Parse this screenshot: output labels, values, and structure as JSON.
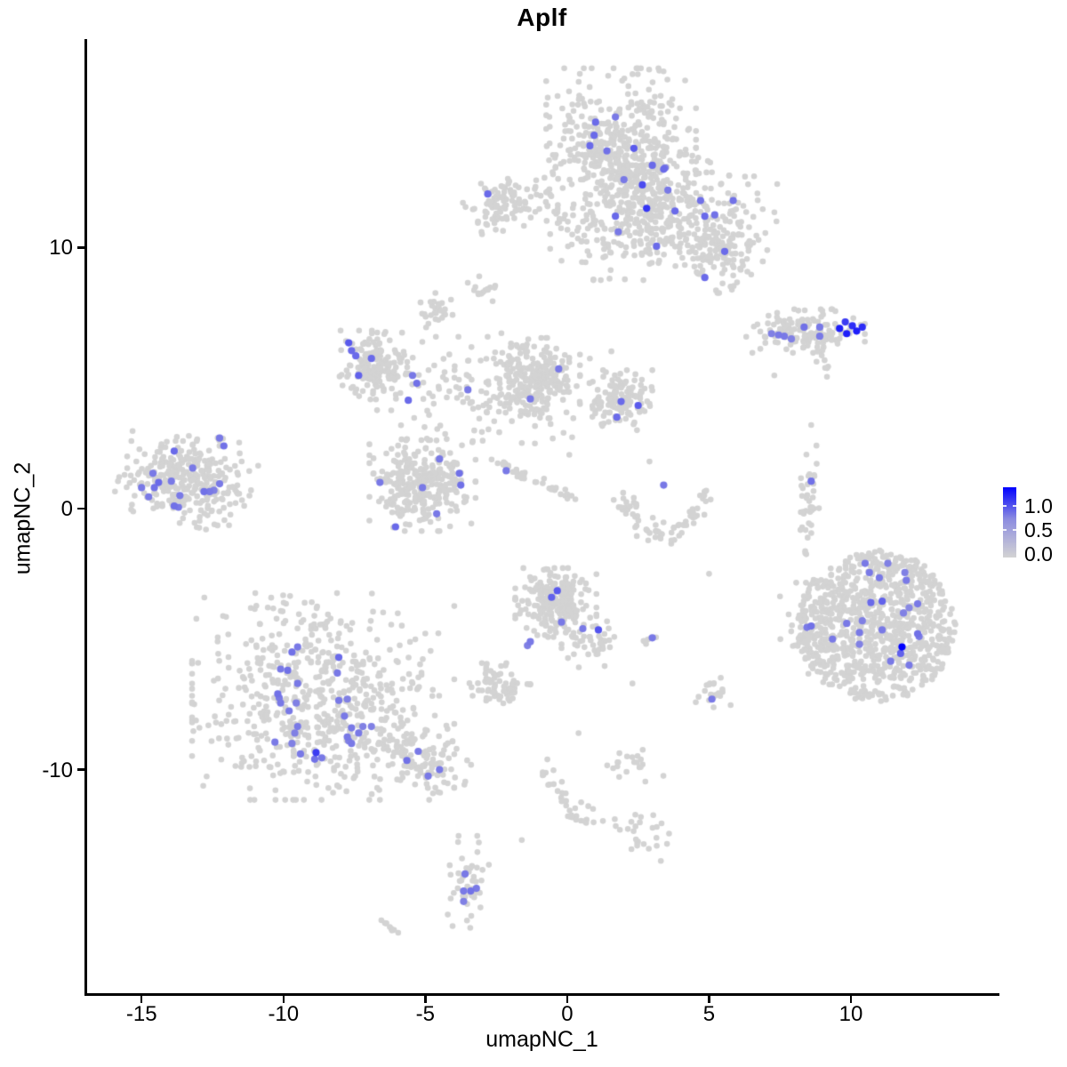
{
  "title": "Aplf",
  "axes": {
    "x": {
      "label": "umapNC_1",
      "ticks": [
        -15,
        -10,
        -5,
        0,
        5,
        10
      ],
      "range": [
        -16.95,
        15.17
      ]
    },
    "y": {
      "label": "umapNC_2",
      "ticks": [
        10,
        0,
        -10
      ],
      "range": [
        -18.6,
        17.95
      ]
    }
  },
  "legend": {
    "ticks": [
      "1.0",
      "0.5",
      "0.0"
    ],
    "vmin": -0.07,
    "vmax": 1.39,
    "low_color": "#d3d3d3",
    "high_color": "#0000ff"
  },
  "chart_data": {
    "type": "scatter",
    "title": "Aplf",
    "xlabel": "umapNC_1",
    "ylabel": "umapNC_2",
    "xlim": [
      -16.95,
      15.17
    ],
    "ylim": [
      -18.6,
      17.95
    ],
    "grid": false,
    "legend_position": "right",
    "point_color_low": "#d3d3d3",
    "point_color_high": "#0000ff",
    "value_max": 1.4,
    "clusters": [
      {
        "x": 1.9,
        "y": 13.9,
        "sx": 1.2,
        "sy": 1.35,
        "n": 430
      },
      {
        "x": 2.3,
        "y": 11.9,
        "sx": 0.75,
        "sy": 1.0,
        "n": 120
      },
      {
        "x": 4.4,
        "y": 11.3,
        "sx": 1.35,
        "sy": 0.95,
        "n": 250,
        "rot": -20
      },
      {
        "x": 5.5,
        "y": 9.8,
        "sx": 0.7,
        "sy": 0.7,
        "n": 85
      },
      {
        "x": 1.6,
        "y": 10.4,
        "sx": 1.0,
        "sy": 0.75,
        "n": 80
      },
      {
        "x": -2.0,
        "y": 11.65,
        "sx": 0.75,
        "sy": 0.45,
        "n": 110,
        "rot": 8
      },
      {
        "x": 0.3,
        "y": 11.3,
        "sx": 0.45,
        "sy": 0.3,
        "n": 14
      },
      {
        "x": -4.7,
        "y": 7.6,
        "sx": 0.3,
        "sy": 0.3,
        "n": 28
      },
      {
        "x": -3.0,
        "y": 8.4,
        "sx": 0.28,
        "sy": 0.22,
        "n": 14
      },
      {
        "x": 8.4,
        "y": 6.8,
        "sx": 0.95,
        "sy": 0.38,
        "n": 140
      },
      {
        "x": -6.7,
        "y": 5.5,
        "sx": 0.6,
        "sy": 0.6,
        "n": 150
      },
      {
        "x": -4.5,
        "y": 4.6,
        "sx": 1.0,
        "sy": 0.9,
        "n": 60
      },
      {
        "x": -1.2,
        "y": 5.0,
        "sx": 0.75,
        "sy": 0.7,
        "n": 240
      },
      {
        "x": -1.5,
        "y": 4.3,
        "sx": 1.8,
        "sy": 1.1,
        "n": 80
      },
      {
        "x": 1.9,
        "y": 4.2,
        "sx": 0.5,
        "sy": 0.5,
        "n": 130
      },
      {
        "x": -5.1,
        "y": 0.9,
        "sx": 0.85,
        "sy": 0.8,
        "n": 300
      },
      {
        "x": -13.4,
        "y": 1.2,
        "sx": 1.05,
        "sy": 0.8,
        "n": 310,
        "rot": -15
      },
      {
        "x": 8.5,
        "y": 0.3,
        "sx": 0.18,
        "sy": 1.0,
        "n": 38
      },
      {
        "x": 10.9,
        "y": -4.5,
        "sx": 2.8,
        "sy": 2.9,
        "n": 900,
        "shape": "disc"
      },
      {
        "x": 8.6,
        "y": -4.6,
        "sx": 0.5,
        "sy": 0.8,
        "n": 45
      },
      {
        "x": -0.4,
        "y": -3.6,
        "sx": 0.65,
        "sy": 0.6,
        "n": 230
      },
      {
        "x": 0.9,
        "y": -5.2,
        "sx": 0.5,
        "sy": 0.4,
        "n": 40
      },
      {
        "x": -2.4,
        "y": -6.8,
        "sx": 0.5,
        "sy": 0.4,
        "n": 65
      },
      {
        "x": -8.6,
        "y": -7.2,
        "sx": 2.1,
        "sy": 1.8,
        "n": 620
      },
      {
        "x": -5.4,
        "y": -9.5,
        "sx": 1.1,
        "sy": 0.5,
        "n": 120,
        "rot": -28
      },
      {
        "x": 5.1,
        "y": -7.1,
        "sx": 0.3,
        "sy": 0.3,
        "n": 20
      },
      {
        "x": 3.0,
        "y": -5.0,
        "sx": 0.18,
        "sy": 0.18,
        "n": 6
      },
      {
        "x": 2.4,
        "y": -9.8,
        "sx": 0.45,
        "sy": 0.3,
        "n": 20
      },
      {
        "x": 2.6,
        "y": -12.4,
        "sx": 0.45,
        "sy": 0.4,
        "n": 24
      },
      {
        "x": 0.9,
        "y": -11.7,
        "sx": 0.4,
        "sy": 0.25,
        "n": 12
      },
      {
        "x": -3.5,
        "y": -14.3,
        "sx": 0.35,
        "sy": 0.8,
        "n": 46
      }
    ],
    "streaks": [
      {
        "x1": -2.5,
        "y1": 1.8,
        "x2": 0.25,
        "y2": 0.4,
        "n": 36,
        "jit": 0.1
      },
      {
        "x1": -0.8,
        "y1": -9.6,
        "x2": 0.2,
        "y2": -12.0,
        "n": 24,
        "jit": 0.15
      },
      {
        "x1": 8.75,
        "y1": 6.3,
        "x2": 9.35,
        "y2": 5.1,
        "n": 10,
        "jit": 0.1
      },
      {
        "x1": -6.5,
        "y1": -15.9,
        "x2": -6.0,
        "y2": -16.2,
        "n": 9,
        "jit": 0.06
      }
    ],
    "arcs": [
      {
        "cx": 3.4,
        "cy": 0.95,
        "rx": 1.45,
        "ry": 1.9,
        "a1": 190,
        "a2": 350,
        "jit": 0.18,
        "n": 72
      }
    ],
    "singles": [
      [
        -3.1,
        8.9
      ],
      [
        8.6,
        3.2
      ],
      [
        2.9,
        1.8
      ],
      [
        5.0,
        -2.5
      ],
      [
        2.3,
        -6.7
      ],
      [
        0.4,
        -8.6
      ],
      [
        7.3,
        5.1
      ],
      [
        -1.6,
        -12.7
      ],
      [
        3.3,
        -13.5
      ]
    ],
    "highlighted_points": [
      [
        1.0,
        14.8,
        0.7
      ],
      [
        1.7,
        15.0,
        0.6
      ],
      [
        0.95,
        14.3,
        0.7
      ],
      [
        0.8,
        13.9,
        0.7
      ],
      [
        1.4,
        13.7,
        0.65
      ],
      [
        2.35,
        13.8,
        0.8
      ],
      [
        3.0,
        13.15,
        0.7
      ],
      [
        3.45,
        13.05,
        0.6
      ],
      [
        2.65,
        12.4,
        0.9
      ],
      [
        3.55,
        12.2,
        0.6
      ],
      [
        2.8,
        11.5,
        1.05
      ],
      [
        3.8,
        11.4,
        0.7
      ],
      [
        1.7,
        11.2,
        0.7
      ],
      [
        1.8,
        10.6,
        0.6
      ],
      [
        4.7,
        11.8,
        0.65
      ],
      [
        5.85,
        11.8,
        0.65
      ],
      [
        4.85,
        11.2,
        0.7
      ],
      [
        5.2,
        11.25,
        0.65
      ],
      [
        3.15,
        10.05,
        0.7
      ],
      [
        5.55,
        9.85,
        0.7
      ],
      [
        4.85,
        8.85,
        0.7
      ],
      [
        3.4,
        13.0,
        0.7
      ],
      [
        2.0,
        12.6,
        0.6
      ],
      [
        -2.8,
        12.05,
        0.7
      ],
      [
        7.2,
        6.7,
        0.55
      ],
      [
        7.45,
        6.65,
        0.6
      ],
      [
        7.65,
        6.6,
        0.6
      ],
      [
        7.9,
        6.5,
        0.55
      ],
      [
        8.35,
        6.95,
        0.65
      ],
      [
        8.9,
        6.95,
        0.6
      ],
      [
        8.9,
        6.6,
        0.6
      ],
      [
        9.6,
        6.9,
        1.2
      ],
      [
        9.85,
        6.7,
        1.2
      ],
      [
        10.05,
        7.0,
        1.1
      ],
      [
        10.2,
        6.8,
        1.2
      ],
      [
        10.4,
        6.95,
        1.1
      ],
      [
        9.8,
        7.15,
        1.0
      ],
      [
        -7.7,
        6.35,
        0.8
      ],
      [
        -7.6,
        6.05,
        0.7
      ],
      [
        -7.45,
        5.85,
        0.7
      ],
      [
        -6.9,
        5.75,
        0.7
      ],
      [
        -7.35,
        5.1,
        0.75
      ],
      [
        -5.45,
        5.1,
        0.6
      ],
      [
        -5.3,
        4.8,
        0.65
      ],
      [
        -5.6,
        4.15,
        0.7
      ],
      [
        -3.5,
        4.55,
        0.6
      ],
      [
        -1.3,
        4.2,
        0.6
      ],
      [
        -0.3,
        5.35,
        0.6
      ],
      [
        -2.15,
        1.45,
        0.6
      ],
      [
        1.9,
        4.1,
        0.7
      ],
      [
        2.5,
        3.95,
        0.8
      ],
      [
        1.75,
        3.5,
        0.7
      ],
      [
        -6.6,
        1.0,
        0.6
      ],
      [
        -4.5,
        1.9,
        0.6
      ],
      [
        -3.8,
        1.35,
        0.65
      ],
      [
        -5.1,
        0.8,
        0.6
      ],
      [
        -3.75,
        0.9,
        0.65
      ],
      [
        -4.6,
        -0.2,
        0.6
      ],
      [
        -6.05,
        -0.7,
        0.7
      ],
      [
        -12.25,
        2.7,
        0.6
      ],
      [
        -12.1,
        2.4,
        0.65
      ],
      [
        -13.85,
        2.2,
        0.7
      ],
      [
        -13.2,
        1.55,
        0.6
      ],
      [
        -14.6,
        1.35,
        0.6
      ],
      [
        -14.4,
        1.0,
        0.7
      ],
      [
        -15.0,
        0.8,
        0.6
      ],
      [
        -14.55,
        0.8,
        0.65
      ],
      [
        -13.95,
        1.05,
        0.6
      ],
      [
        -13.65,
        0.5,
        0.6
      ],
      [
        -14.75,
        0.45,
        0.6
      ],
      [
        -12.8,
        0.65,
        0.65
      ],
      [
        -12.6,
        0.65,
        0.6
      ],
      [
        -12.45,
        0.7,
        0.55
      ],
      [
        -12.25,
        0.95,
        0.6
      ],
      [
        -13.85,
        0.1,
        0.65
      ],
      [
        -13.7,
        0.05,
        0.6
      ],
      [
        3.4,
        0.9,
        0.6
      ],
      [
        8.6,
        1.05,
        0.65
      ],
      [
        10.5,
        -2.1,
        0.6
      ],
      [
        11.3,
        -2.1,
        0.55
      ],
      [
        10.65,
        -2.45,
        0.6
      ],
      [
        11.0,
        -2.65,
        0.6
      ],
      [
        11.9,
        -2.45,
        0.55
      ],
      [
        11.95,
        -2.75,
        0.6
      ],
      [
        10.7,
        -3.6,
        0.7
      ],
      [
        11.1,
        -3.55,
        0.75
      ],
      [
        12.35,
        -3.65,
        0.6
      ],
      [
        11.85,
        -4.0,
        0.55
      ],
      [
        12.05,
        -3.8,
        0.5
      ],
      [
        9.85,
        -4.4,
        0.6
      ],
      [
        10.4,
        -4.3,
        0.55
      ],
      [
        8.6,
        -4.5,
        0.65
      ],
      [
        8.45,
        -4.55,
        0.6
      ],
      [
        10.3,
        -4.75,
        0.6
      ],
      [
        11.1,
        -4.65,
        0.6
      ],
      [
        12.35,
        -4.8,
        0.65
      ],
      [
        12.4,
        -4.9,
        0.6
      ],
      [
        9.35,
        -5.0,
        0.6
      ],
      [
        10.3,
        -5.2,
        0.55
      ],
      [
        11.8,
        -5.3,
        1.4
      ],
      [
        11.75,
        -5.55,
        0.75
      ],
      [
        11.4,
        -5.85,
        0.6
      ],
      [
        12.05,
        -6.0,
        0.6
      ],
      [
        -0.35,
        -3.15,
        0.8
      ],
      [
        -0.55,
        -3.4,
        0.75
      ],
      [
        -0.2,
        -4.35,
        0.6
      ],
      [
        0.55,
        -4.6,
        0.6
      ],
      [
        1.1,
        -4.65,
        0.85
      ],
      [
        -1.3,
        -5.1,
        0.6
      ],
      [
        -1.4,
        -5.25,
        0.55
      ],
      [
        3.0,
        -4.95,
        0.6
      ],
      [
        5.1,
        -7.3,
        0.6
      ],
      [
        -9.5,
        -5.3,
        0.6
      ],
      [
        -9.7,
        -5.5,
        0.65
      ],
      [
        -8.05,
        -5.7,
        0.7
      ],
      [
        -10.1,
        -6.15,
        0.6
      ],
      [
        -9.85,
        -6.2,
        0.65
      ],
      [
        -8.1,
        -6.3,
        0.6
      ],
      [
        -9.5,
        -6.7,
        0.6
      ],
      [
        -10.2,
        -7.1,
        0.65
      ],
      [
        -10.15,
        -7.25,
        0.6
      ],
      [
        -10.1,
        -7.45,
        0.6
      ],
      [
        -9.55,
        -7.45,
        0.55
      ],
      [
        -9.8,
        -7.75,
        0.6
      ],
      [
        -8.05,
        -7.35,
        0.6
      ],
      [
        -7.75,
        -7.3,
        0.55
      ],
      [
        -7.85,
        -7.95,
        0.6
      ],
      [
        -9.5,
        -8.35,
        0.6
      ],
      [
        -9.6,
        -8.6,
        0.55
      ],
      [
        -7.6,
        -8.4,
        0.6
      ],
      [
        -7.2,
        -8.35,
        0.55
      ],
      [
        -7.35,
        -8.6,
        0.6
      ],
      [
        -7.75,
        -8.75,
        0.6
      ],
      [
        -7.7,
        -8.9,
        0.55
      ],
      [
        -7.6,
        -9.0,
        0.6
      ],
      [
        -6.9,
        -8.35,
        0.55
      ],
      [
        -10.3,
        -8.95,
        0.6
      ],
      [
        -9.7,
        -9.0,
        0.55
      ],
      [
        -8.85,
        -9.35,
        1.0
      ],
      [
        -9.4,
        -9.4,
        0.6
      ],
      [
        -8.9,
        -9.6,
        0.65
      ],
      [
        -8.65,
        -9.55,
        0.6
      ],
      [
        -5.25,
        -9.3,
        0.6
      ],
      [
        -5.65,
        -9.65,
        0.65
      ],
      [
        -4.5,
        -10.0,
        0.6
      ],
      [
        -4.9,
        -10.25,
        0.6
      ],
      [
        -3.6,
        -14.0,
        0.6
      ],
      [
        -3.65,
        -14.65,
        0.6
      ],
      [
        -3.4,
        -14.65,
        0.65
      ],
      [
        -3.2,
        -14.55,
        0.6
      ],
      [
        -3.65,
        -15.05,
        0.55
      ]
    ]
  }
}
